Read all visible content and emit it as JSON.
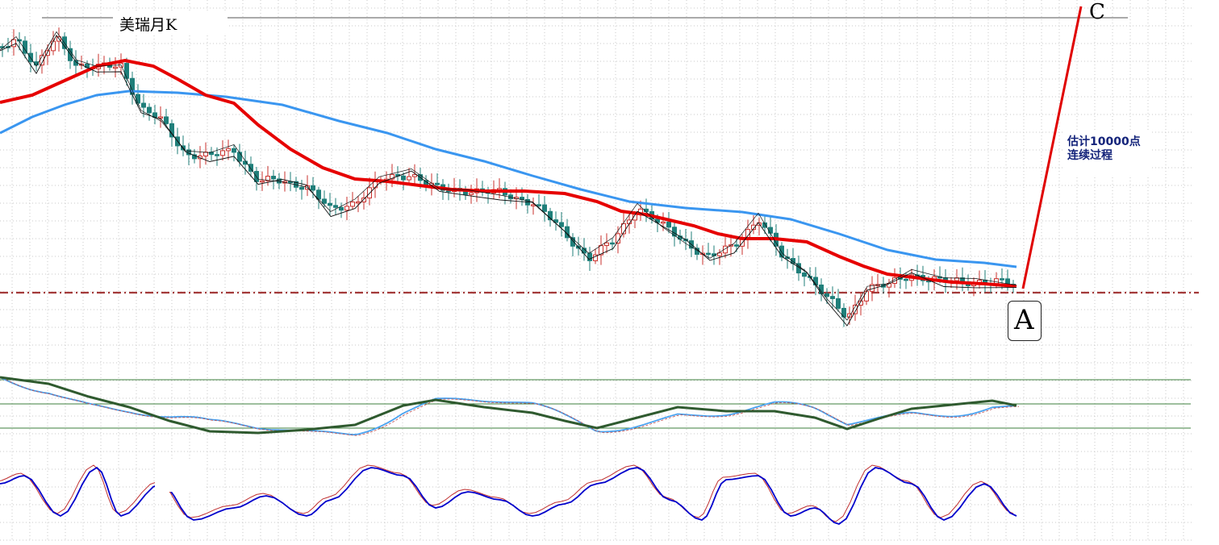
{
  "chart_data": [
    {
      "type": "candlestick",
      "title": "美瑞月K",
      "price_overlays": [
        "ma-short-black",
        "ma-black-thin",
        "ma-red",
        "ma-blue"
      ],
      "annotations": {
        "point_a": "A",
        "point_c": "C",
        "projection_note_line1": "估计10000点",
        "projection_note_line2": "连续过程"
      },
      "colors": {
        "up_candle": "#c9302c",
        "down_candle": "#1f7f7a",
        "ma_red": "#e60000",
        "ma_blue": "#3a96f0",
        "ma_black": "#111111",
        "projection": "#e00000",
        "support_line": "#a33a3a"
      },
      "grid": true
    },
    {
      "type": "line",
      "name": "middle-oscillator",
      "series_colors": [
        "#4aa3f0",
        "#c04a4a",
        "#2f5a2f"
      ],
      "grid": true
    },
    {
      "type": "line",
      "name": "lower-oscillator",
      "series_colors": [
        "#0000cc",
        "#c03030"
      ],
      "grid": true
    }
  ]
}
